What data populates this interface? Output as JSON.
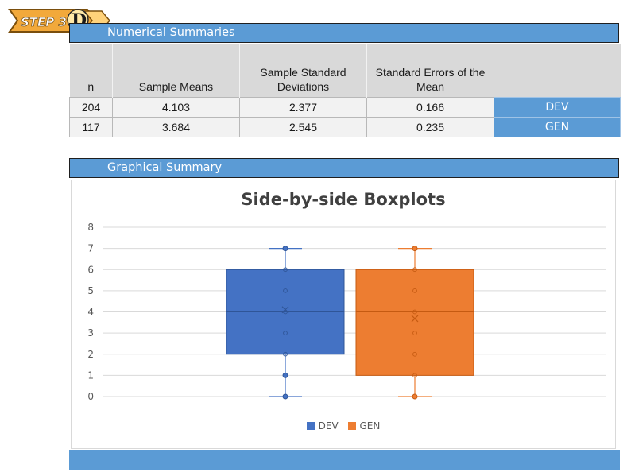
{
  "badge": {
    "text": "STEP 3",
    "letter": "D"
  },
  "numerical": {
    "title": "Numerical Summaries",
    "headers": [
      "n",
      "Sample Means",
      "Sample Standard Deviations",
      "Standard Errors of the Mean",
      ""
    ],
    "rows": [
      {
        "n": "204",
        "mean": "4.103",
        "sd": "2.377",
        "se": "0.166",
        "group": "DEV"
      },
      {
        "n": "117",
        "mean": "3.684",
        "sd": "2.545",
        "se": "0.235",
        "group": "GEN"
      }
    ]
  },
  "graphical": {
    "title": "Graphical Summary"
  },
  "chart_data": {
    "type": "boxplot",
    "title": "Side-by-side Boxplots",
    "ylim": [
      0,
      8
    ],
    "yticks": [
      0,
      1,
      2,
      3,
      4,
      5,
      6,
      7,
      8
    ],
    "grid": true,
    "legend_position": "bottom",
    "series": [
      {
        "name": "DEV",
        "color": "#4472c4",
        "min": 0,
        "q1": 2,
        "median": 4,
        "q3": 6,
        "max": 7,
        "mean": 4.103,
        "points": [
          0,
          1,
          2,
          3,
          4,
          5,
          6,
          7
        ]
      },
      {
        "name": "GEN",
        "color": "#ed7d31",
        "min": 0,
        "q1": 1,
        "median": 4,
        "q3": 6,
        "max": 7,
        "mean": 3.684,
        "points": [
          0,
          1,
          2,
          3,
          4,
          5,
          6,
          7
        ]
      }
    ]
  }
}
